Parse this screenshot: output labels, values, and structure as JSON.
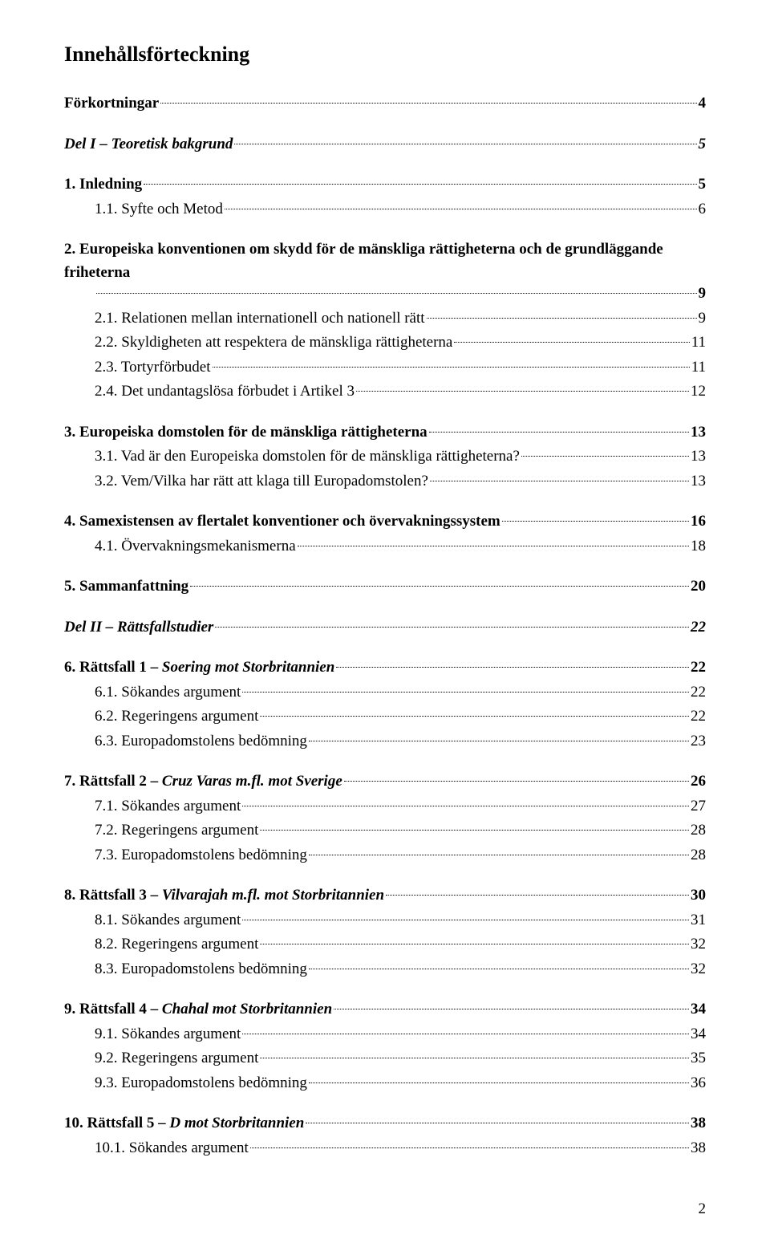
{
  "title": "Innehållsförteckning",
  "styles": {
    "font_family": "Times New Roman",
    "title_fontsize": 26,
    "body_fontsize": 19,
    "text_color": "#000000",
    "background_color": "#ffffff"
  },
  "toc": {
    "e1": {
      "label": "Förkortningar",
      "page": "4"
    },
    "e2": {
      "label": "Del I – Teoretisk bakgrund",
      "page": "5"
    },
    "e3": {
      "label": "1.   Inledning",
      "page": "5"
    },
    "e4": {
      "label": "1.1.   Syfte och Metod",
      "page": "6"
    },
    "e5": {
      "label": "2.   Europeiska konventionen om skydd för de mänskliga rättigheterna och de grundläggande friheterna",
      "page": "9"
    },
    "e6": {
      "label": "2.1.   Relationen mellan internationell och nationell rätt",
      "page": "9"
    },
    "e7": {
      "label": "2.2.   Skyldigheten att respektera de mänskliga rättigheterna",
      "page": "11"
    },
    "e8": {
      "label": "2.3.   Tortyrförbudet",
      "page": "11"
    },
    "e9": {
      "label": "2.4.   Det undantagslösa förbudet i Artikel 3",
      "page": "12"
    },
    "e10": {
      "label": "3.   Europeiska domstolen för de mänskliga rättigheterna",
      "page": "13"
    },
    "e11": {
      "label": "3.1.   Vad är den Europeiska domstolen för de mänskliga rättigheterna?",
      "page": "13"
    },
    "e12": {
      "label": "3.2.   Vem/Vilka har rätt att klaga till Europadomstolen?",
      "page": "13"
    },
    "e13": {
      "label": "4.   Samexistensen av flertalet konventioner och övervakningssystem",
      "page": "16"
    },
    "e14": {
      "label": "4.1.   Övervakningsmekanismerna",
      "page": "18"
    },
    "e15": {
      "label": "5.   Sammanfattning",
      "page": "20"
    },
    "e16": {
      "label": "Del II – Rättsfallstudier",
      "page": "22"
    },
    "e17": {
      "label": "6.   Rättsfall 1 – ",
      "italic": "Soering mot Storbritannien",
      "page": "22"
    },
    "e18": {
      "label": "6.1.   Sökandes argument",
      "page": "22"
    },
    "e19": {
      "label": "6.2.   Regeringens argument",
      "page": "22"
    },
    "e20": {
      "label": "6.3.   Europadomstolens bedömning",
      "page": "23"
    },
    "e21": {
      "label": "7.   Rättsfall 2 – ",
      "italic": "Cruz Varas m.fl. mot Sverige",
      "page": "26"
    },
    "e22": {
      "label": "7.1.   Sökandes argument",
      "page": "27"
    },
    "e23": {
      "label": "7.2.   Regeringens argument",
      "page": "28"
    },
    "e24": {
      "label": "7.3.   Europadomstolens bedömning",
      "page": "28"
    },
    "e25": {
      "label": "8.   Rättsfall 3 – ",
      "italic": "Vilvarajah m.fl. mot Storbritannien",
      "page": "30"
    },
    "e26": {
      "label": "8.1.   Sökandes argument",
      "page": "31"
    },
    "e27": {
      "label": "8.2.   Regeringens argument",
      "page": "32"
    },
    "e28": {
      "label": "8.3.   Europadomstolens bedömning",
      "page": "32"
    },
    "e29": {
      "label": "9.   Rättsfall 4 – ",
      "italic": "Chahal mot Storbritannien",
      "page": "34"
    },
    "e30": {
      "label": "9.1.   Sökandes argument",
      "page": "34"
    },
    "e31": {
      "label": "9.2.   Regeringens argument",
      "page": "35"
    },
    "e32": {
      "label": "9.3.   Europadomstolens bedömning",
      "page": "36"
    },
    "e33": {
      "label": "10.  Rättsfall 5 – ",
      "italic": "D mot Storbritannien",
      "page": "38"
    },
    "e34": {
      "label": "10.1. Sökandes argument",
      "page": "38"
    }
  },
  "page_number": "2"
}
